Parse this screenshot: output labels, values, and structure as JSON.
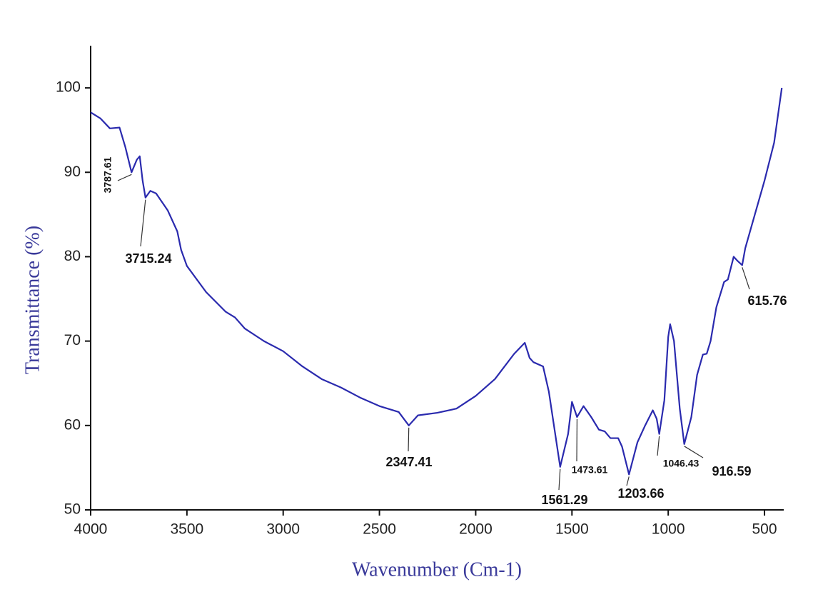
{
  "chart_data": {
    "type": "line",
    "x_label": "Wavenumber (Cm-1)",
    "y_label": "Transmittance (%)",
    "xlim": [
      4000,
      400
    ],
    "ylim": [
      50,
      105
    ],
    "xticks": [
      4000,
      3500,
      3000,
      2500,
      2000,
      1500,
      1000,
      500
    ],
    "yticks": [
      50,
      60,
      70,
      80,
      90,
      100
    ],
    "x": [
      4000,
      3950,
      3900,
      3850,
      3820,
      3787.61,
      3760,
      3745,
      3730,
      3715.24,
      3690,
      3660,
      3600,
      3550,
      3530,
      3500,
      3400,
      3300,
      3250,
      3200,
      3100,
      3000,
      2900,
      2800,
      2700,
      2600,
      2500,
      2400,
      2347.41,
      2300,
      2200,
      2100,
      2000,
      1900,
      1800,
      1745,
      1720,
      1700,
      1650,
      1620,
      1561.29,
      1520,
      1500,
      1473.61,
      1440,
      1400,
      1360,
      1330,
      1300,
      1260,
      1240,
      1203.66,
      1160,
      1120,
      1080,
      1060,
      1046.43,
      1020,
      1000,
      990,
      970,
      940,
      916.59,
      880,
      850,
      820,
      800,
      780,
      750,
      710,
      690,
      660,
      640,
      615.76,
      600,
      550,
      500,
      450,
      410
    ],
    "series": [
      {
        "color": "#2a2aae",
        "values": [
          97.1,
          96.4,
          95.2,
          95.3,
          93,
          90,
          91.5,
          91.9,
          89,
          87,
          87.8,
          87.5,
          85.5,
          83,
          80.8,
          78.9,
          75.8,
          73.5,
          72.8,
          71.5,
          70,
          68.8,
          67,
          65.5,
          64.5,
          63.3,
          62.3,
          61.6,
          60,
          61.2,
          61.5,
          62,
          63.5,
          65.5,
          68.5,
          69.8,
          68,
          67.5,
          67,
          64,
          55.1,
          59,
          62.8,
          61,
          62.3,
          61,
          59.5,
          59.3,
          58.5,
          58.5,
          57.5,
          54.2,
          58,
          60,
          61.8,
          60.8,
          59,
          63,
          70.5,
          72,
          70,
          62,
          57.8,
          61,
          66,
          68.4,
          68.5,
          70,
          74,
          77,
          77.3,
          80,
          79.5,
          79,
          81,
          85,
          89,
          93.5,
          100
        ]
      }
    ],
    "annotations": [
      {
        "x": 3787.61,
        "y": 90
      },
      {
        "x": 3715.24,
        "y": 87
      },
      {
        "x": 2347.41,
        "y": 60
      },
      {
        "x": 1561.29,
        "y": 55.1
      },
      {
        "x": 1473.61,
        "y": 61
      },
      {
        "x": 1203.66,
        "y": 54.2
      },
      {
        "x": 1046.43,
        "y": 59
      },
      {
        "x": 916.59,
        "y": 57.8
      },
      {
        "x": 615.76,
        "y": 79
      }
    ]
  }
}
